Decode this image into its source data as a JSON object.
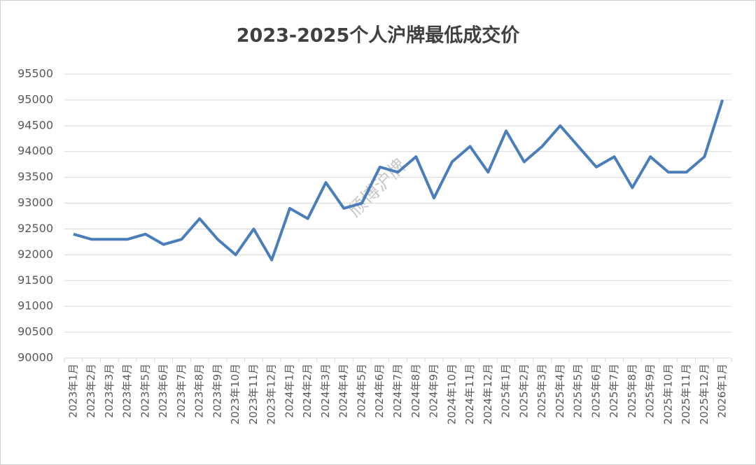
{
  "chart_data": {
    "type": "line",
    "title": "2023-2025个人沪牌最低成交价",
    "watermark": "颀博沪牌",
    "categories": [
      "2023年1月",
      "2023年2月",
      "2023年3月",
      "2023年4月",
      "2023年5月",
      "2023年6月",
      "2023年7月",
      "2023年8月",
      "2023年9月",
      "2023年10月",
      "2023年11月",
      "2023年12月",
      "2024年1月",
      "2024年2月",
      "2024年3月",
      "2024年4月",
      "2024年5月",
      "2024年6月",
      "2024年7月",
      "2024年8月",
      "2024年9月",
      "2024年10月",
      "2024年11月",
      "2024年12月",
      "2025年1月",
      "2025年2月",
      "2025年3月",
      "2025年4月",
      "2025年5月",
      "2025年6月",
      "2025年7月",
      "2025年8月",
      "2025年9月",
      "2025年10月",
      "2025年11月",
      "2025年12月",
      "2026年1月"
    ],
    "values": [
      92400,
      92300,
      92300,
      92300,
      92400,
      92200,
      92300,
      92700,
      92300,
      92000,
      92500,
      91900,
      92900,
      92700,
      93400,
      92900,
      93000,
      93700,
      93600,
      93900,
      93100,
      93800,
      94100,
      93600,
      94400,
      93800,
      94100,
      94500,
      94100,
      93700,
      93900,
      93300,
      93900,
      93600,
      93600,
      93900,
      95000
    ],
    "color": "#4a7ebb",
    "ylim": [
      90000,
      95500
    ],
    "yticks": [
      90000,
      90500,
      91000,
      91500,
      92000,
      92500,
      93000,
      93500,
      94000,
      94500,
      95000,
      95500
    ],
    "grid": true
  }
}
